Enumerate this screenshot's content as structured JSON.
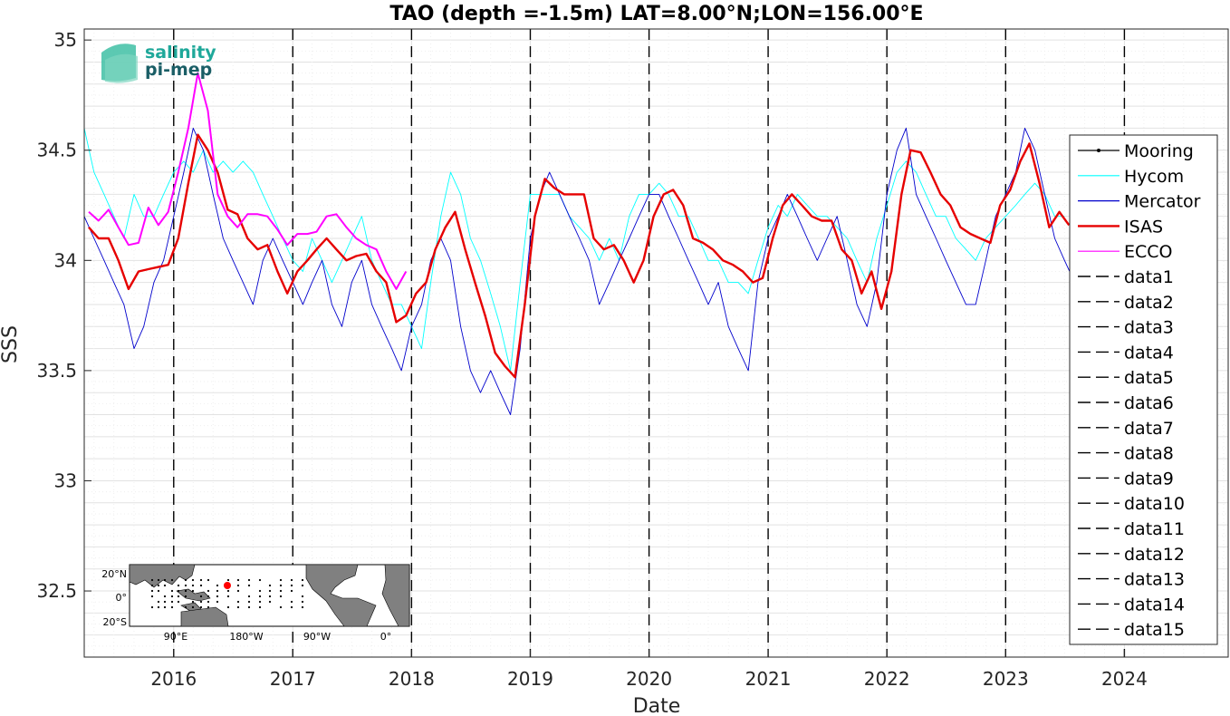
{
  "chart_data": {
    "type": "line",
    "title": "TAO (depth =-1.5m) LAT=8.00°N;LON=156.00°E",
    "xlabel": "Date",
    "ylabel": "SSS",
    "xlim": [
      "2015-04-01",
      "2024-11-15"
    ],
    "ylim": [
      32.2,
      35.05
    ],
    "x_ticks": [
      "2016",
      "2017",
      "2018",
      "2019",
      "2020",
      "2021",
      "2022",
      "2023",
      "2024"
    ],
    "y_ticks": [
      "32.5",
      "33",
      "33.5",
      "34",
      "34.5",
      "35"
    ],
    "grid": "on",
    "legend_position": "right",
    "year_lines": [
      "2016-01-01",
      "2017-01-01",
      "2018-01-01",
      "2019-01-01",
      "2020-01-01",
      "2021-01-01",
      "2022-01-01",
      "2023-01-01",
      "2024-01-01"
    ],
    "series": [
      {
        "name": "Mooring",
        "color": "#000000",
        "style": "solid-dot",
        "x": [],
        "y": []
      },
      {
        "name": "Hycom",
        "color": "#00ffff",
        "style": "solid",
        "x": [
          "2015-04-01",
          "2015-05-01",
          "2015-06-01",
          "2015-07-01",
          "2015-08-01",
          "2015-09-01",
          "2015-10-01",
          "2015-11-01",
          "2015-12-01",
          "2016-01-01",
          "2016-02-01",
          "2016-03-01",
          "2016-04-01",
          "2016-05-01",
          "2016-06-01",
          "2016-07-01",
          "2016-08-01",
          "2016-09-01",
          "2016-10-01",
          "2016-11-01",
          "2016-12-01",
          "2017-01-01",
          "2017-02-01",
          "2017-03-01",
          "2017-04-01",
          "2017-05-01",
          "2017-06-01",
          "2017-07-01",
          "2017-08-01",
          "2017-09-01",
          "2017-10-01",
          "2017-11-01",
          "2017-12-01",
          "2018-01-01",
          "2018-02-01",
          "2018-03-01",
          "2018-04-01",
          "2018-05-01",
          "2018-06-01",
          "2018-07-01",
          "2018-08-01",
          "2018-09-01",
          "2018-10-01",
          "2018-11-01",
          "2018-12-01",
          "2019-01-01",
          "2019-02-01",
          "2019-03-01",
          "2019-04-01",
          "2019-05-01",
          "2019-06-01",
          "2019-07-01",
          "2019-08-01",
          "2019-09-01",
          "2019-10-01",
          "2019-11-01",
          "2019-12-01",
          "2020-01-01",
          "2020-02-01",
          "2020-03-01",
          "2020-04-01",
          "2020-05-01",
          "2020-06-01",
          "2020-07-01",
          "2020-08-01",
          "2020-09-01",
          "2020-10-01",
          "2020-11-01",
          "2020-12-01",
          "2021-01-01",
          "2021-02-01",
          "2021-03-01",
          "2021-04-01",
          "2021-05-01",
          "2021-06-01",
          "2021-07-01",
          "2021-08-01",
          "2021-09-01",
          "2021-10-01",
          "2021-11-01",
          "2021-12-01",
          "2022-01-01",
          "2022-02-01",
          "2022-03-01",
          "2022-04-01",
          "2022-05-01",
          "2022-06-01",
          "2022-07-01",
          "2022-08-01",
          "2022-09-01",
          "2022-10-01",
          "2022-11-01",
          "2022-12-01",
          "2023-01-01",
          "2023-02-01",
          "2023-03-01",
          "2023-04-01",
          "2023-05-01",
          "2023-06-01",
          "2023-07-01"
        ],
        "y": [
          34.6,
          34.4,
          34.3,
          34.2,
          34.1,
          34.3,
          34.2,
          34.2,
          34.3,
          34.4,
          34.45,
          34.4,
          34.5,
          34.4,
          34.45,
          34.4,
          34.45,
          34.4,
          34.3,
          34.2,
          34.1,
          34.0,
          33.95,
          34.1,
          34.0,
          33.9,
          34.0,
          34.1,
          34.2,
          34.0,
          33.9,
          33.8,
          33.8,
          33.7,
          33.6,
          33.9,
          34.2,
          34.4,
          34.3,
          34.1,
          34.0,
          33.85,
          33.7,
          33.5,
          33.9,
          34.3,
          34.3,
          34.3,
          34.3,
          34.2,
          34.15,
          34.1,
          34.0,
          34.1,
          34.0,
          34.2,
          34.3,
          34.3,
          34.35,
          34.3,
          34.2,
          34.2,
          34.1,
          34.0,
          34.0,
          33.9,
          33.9,
          33.85,
          34.0,
          34.15,
          34.25,
          34.2,
          34.3,
          34.25,
          34.2,
          34.2,
          34.15,
          34.1,
          34.0,
          33.9,
          34.1,
          34.25,
          34.4,
          34.45,
          34.4,
          34.3,
          34.2,
          34.2,
          34.1,
          34.05,
          34.0,
          34.1,
          34.15,
          34.2,
          34.25,
          34.3,
          34.35,
          34.3,
          34.2,
          34.2
        ]
      },
      {
        "name": "Mercator",
        "color": "#0000cc",
        "style": "solid",
        "x": [
          "2015-04-01",
          "2015-05-01",
          "2015-06-01",
          "2015-07-01",
          "2015-08-01",
          "2015-09-01",
          "2015-10-01",
          "2015-11-01",
          "2015-12-01",
          "2016-01-01",
          "2016-02-01",
          "2016-03-01",
          "2016-04-01",
          "2016-05-01",
          "2016-06-01",
          "2016-07-01",
          "2016-08-01",
          "2016-09-01",
          "2016-10-01",
          "2016-11-01",
          "2016-12-01",
          "2017-01-01",
          "2017-02-01",
          "2017-03-01",
          "2017-04-01",
          "2017-05-01",
          "2017-06-01",
          "2017-07-01",
          "2017-08-01",
          "2017-09-01",
          "2017-10-01",
          "2017-11-01",
          "2017-12-01",
          "2018-01-01",
          "2018-02-01",
          "2018-03-01",
          "2018-04-01",
          "2018-05-01",
          "2018-06-01",
          "2018-07-01",
          "2018-08-01",
          "2018-09-01",
          "2018-10-01",
          "2018-11-01",
          "2018-12-01",
          "2019-01-01",
          "2019-02-01",
          "2019-03-01",
          "2019-04-01",
          "2019-05-01",
          "2019-06-01",
          "2019-07-01",
          "2019-08-01",
          "2019-09-01",
          "2019-10-01",
          "2019-11-01",
          "2019-12-01",
          "2020-01-01",
          "2020-02-01",
          "2020-03-01",
          "2020-04-01",
          "2020-05-01",
          "2020-06-01",
          "2020-07-01",
          "2020-08-01",
          "2020-09-01",
          "2020-10-01",
          "2020-11-01",
          "2020-12-01",
          "2021-01-01",
          "2021-02-01",
          "2021-03-01",
          "2021-04-01",
          "2021-05-01",
          "2021-06-01",
          "2021-07-01",
          "2021-08-01",
          "2021-09-01",
          "2021-10-01",
          "2021-11-01",
          "2021-12-01",
          "2022-01-01",
          "2022-02-01",
          "2022-03-01",
          "2022-04-01",
          "2022-05-01",
          "2022-06-01",
          "2022-07-01",
          "2022-08-01",
          "2022-09-01",
          "2022-10-01",
          "2022-11-01",
          "2022-12-01",
          "2023-01-01",
          "2023-02-01",
          "2023-03-01",
          "2023-04-01",
          "2023-05-01",
          "2023-06-01",
          "2023-07-01",
          "2023-08-01"
        ],
        "y": [
          34.2,
          34.1,
          34.0,
          33.9,
          33.8,
          33.6,
          33.7,
          33.9,
          34.0,
          34.2,
          34.4,
          34.6,
          34.5,
          34.3,
          34.1,
          34.0,
          33.9,
          33.8,
          34.0,
          34.1,
          34.0,
          33.9,
          33.8,
          33.9,
          34.0,
          33.8,
          33.7,
          33.9,
          34.0,
          33.8,
          33.7,
          33.6,
          33.5,
          33.7,
          33.8,
          34.0,
          34.1,
          34.0,
          33.7,
          33.5,
          33.4,
          33.5,
          33.4,
          33.3,
          33.6,
          34.1,
          34.3,
          34.4,
          34.3,
          34.2,
          34.1,
          34.0,
          33.8,
          33.9,
          34.0,
          34.1,
          34.2,
          34.3,
          34.3,
          34.2,
          34.1,
          34.0,
          33.9,
          33.8,
          33.9,
          33.7,
          33.6,
          33.5,
          33.9,
          34.1,
          34.2,
          34.3,
          34.2,
          34.1,
          34.0,
          34.1,
          34.2,
          34.0,
          33.8,
          33.7,
          33.9,
          34.3,
          34.5,
          34.6,
          34.3,
          34.2,
          34.1,
          34.0,
          33.9,
          33.8,
          33.8,
          34.0,
          34.2,
          34.3,
          34.4,
          34.6,
          34.5,
          34.3,
          34.1,
          34.0,
          33.9
        ]
      },
      {
        "name": "ISAS",
        "color": "#e60000",
        "style": "solid-thick",
        "x": [
          "2015-04-15",
          "2015-05-15",
          "2015-06-15",
          "2015-07-15",
          "2015-08-15",
          "2015-09-15",
          "2015-10-15",
          "2015-11-15",
          "2015-12-15",
          "2016-01-15",
          "2016-02-15",
          "2016-03-15",
          "2016-04-15",
          "2016-05-15",
          "2016-06-15",
          "2016-07-15",
          "2016-08-15",
          "2016-09-15",
          "2016-10-15",
          "2016-11-15",
          "2016-12-15",
          "2017-01-15",
          "2017-02-15",
          "2017-03-15",
          "2017-04-15",
          "2017-05-15",
          "2017-06-15",
          "2017-07-15",
          "2017-08-15",
          "2017-09-15",
          "2017-10-15",
          "2017-11-15",
          "2017-12-15",
          "2018-01-15",
          "2018-02-15",
          "2018-03-15",
          "2018-04-15",
          "2018-05-15",
          "2018-06-15",
          "2018-07-15",
          "2018-08-15",
          "2018-09-15",
          "2018-10-15",
          "2018-11-15",
          "2018-12-15",
          "2019-01-15",
          "2019-02-15",
          "2019-03-15",
          "2019-04-15",
          "2019-05-15",
          "2019-06-15",
          "2019-07-15",
          "2019-08-15",
          "2019-09-15",
          "2019-10-15",
          "2019-11-15",
          "2019-12-15",
          "2020-01-15",
          "2020-02-15",
          "2020-03-15",
          "2020-04-15",
          "2020-05-15",
          "2020-06-15",
          "2020-07-15",
          "2020-08-15",
          "2020-09-15",
          "2020-10-15",
          "2020-11-15",
          "2020-12-15",
          "2021-01-15",
          "2021-02-15",
          "2021-03-15",
          "2021-04-15",
          "2021-05-15",
          "2021-06-15",
          "2021-07-15",
          "2021-08-15",
          "2021-09-15",
          "2021-10-15",
          "2021-11-15",
          "2021-12-15",
          "2022-01-15",
          "2022-02-15",
          "2022-03-15",
          "2022-04-15",
          "2022-05-15",
          "2022-06-15",
          "2022-07-15",
          "2022-08-15",
          "2022-09-15",
          "2022-10-15",
          "2022-11-15",
          "2022-12-15",
          "2023-01-15",
          "2023-02-15",
          "2023-03-15",
          "2023-04-15",
          "2023-05-15",
          "2023-06-15",
          "2023-07-15"
        ],
        "y": [
          34.15,
          34.1,
          34.1,
          34.0,
          33.87,
          33.95,
          33.96,
          33.97,
          33.98,
          34.1,
          34.35,
          34.57,
          34.5,
          34.4,
          34.23,
          34.21,
          34.1,
          34.05,
          34.07,
          33.95,
          33.85,
          33.95,
          34.0,
          34.05,
          34.1,
          34.05,
          34.0,
          34.02,
          34.03,
          33.95,
          33.9,
          33.72,
          33.75,
          33.85,
          33.9,
          34.05,
          34.15,
          34.22,
          34.05,
          33.9,
          33.75,
          33.58,
          33.52,
          33.47,
          33.8,
          34.2,
          34.37,
          34.33,
          34.3,
          34.3,
          34.3,
          34.1,
          34.05,
          34.07,
          34.0,
          33.9,
          34.0,
          34.2,
          34.3,
          34.32,
          34.25,
          34.1,
          34.08,
          34.05,
          34.0,
          33.98,
          33.95,
          33.9,
          33.92,
          34.1,
          34.25,
          34.3,
          34.25,
          34.2,
          34.18,
          34.18,
          34.05,
          34.0,
          33.85,
          33.95,
          33.78,
          33.95,
          34.3,
          34.5,
          34.49,
          34.4,
          34.3,
          34.25,
          34.15,
          34.12,
          34.1,
          34.08,
          34.25,
          34.32,
          34.45,
          34.53,
          34.35,
          34.15,
          34.22,
          34.16
        ]
      },
      {
        "name": "ECCO",
        "color": "#ff00ff",
        "style": "solid",
        "x": [
          "2015-04-15",
          "2015-05-15",
          "2015-06-15",
          "2015-07-15",
          "2015-08-15",
          "2015-09-15",
          "2015-10-15",
          "2015-11-15",
          "2015-12-15",
          "2016-01-15",
          "2016-02-15",
          "2016-03-15",
          "2016-04-15",
          "2016-05-15",
          "2016-06-15",
          "2016-07-15",
          "2016-08-15",
          "2016-09-15",
          "2016-10-15",
          "2016-11-15",
          "2016-12-15",
          "2017-01-15",
          "2017-02-15",
          "2017-03-15",
          "2017-04-15",
          "2017-05-15",
          "2017-06-15",
          "2017-07-15",
          "2017-08-15",
          "2017-09-15",
          "2017-10-15",
          "2017-11-15",
          "2017-12-15"
        ],
        "y": [
          34.22,
          34.18,
          34.23,
          34.15,
          34.07,
          34.08,
          34.24,
          34.16,
          34.22,
          34.4,
          34.6,
          34.85,
          34.68,
          34.3,
          34.2,
          34.15,
          34.21,
          34.21,
          34.2,
          34.14,
          34.07,
          34.12,
          34.12,
          34.13,
          34.2,
          34.21,
          34.15,
          34.1,
          34.07,
          34.05,
          33.95,
          33.87,
          33.95
        ]
      },
      {
        "name": "data1",
        "color": "#000000",
        "style": "dashed",
        "x": [],
        "y": []
      },
      {
        "name": "data2",
        "color": "#000000",
        "style": "dashed",
        "x": [],
        "y": []
      },
      {
        "name": "data3",
        "color": "#000000",
        "style": "dashed",
        "x": [],
        "y": []
      },
      {
        "name": "data4",
        "color": "#000000",
        "style": "dashed",
        "x": [],
        "y": []
      },
      {
        "name": "data5",
        "color": "#000000",
        "style": "dashed",
        "x": [],
        "y": []
      },
      {
        "name": "data6",
        "color": "#000000",
        "style": "dashed",
        "x": [],
        "y": []
      },
      {
        "name": "data7",
        "color": "#000000",
        "style": "dashed",
        "x": [],
        "y": []
      },
      {
        "name": "data8",
        "color": "#000000",
        "style": "dashed",
        "x": [],
        "y": []
      },
      {
        "name": "data9",
        "color": "#000000",
        "style": "dashed",
        "x": [],
        "y": []
      },
      {
        "name": "data10",
        "color": "#000000",
        "style": "dashed",
        "x": [],
        "y": []
      },
      {
        "name": "data11",
        "color": "#000000",
        "style": "dashed",
        "x": [],
        "y": []
      },
      {
        "name": "data12",
        "color": "#000000",
        "style": "dashed",
        "x": [],
        "y": []
      },
      {
        "name": "data13",
        "color": "#000000",
        "style": "dashed",
        "x": [],
        "y": []
      },
      {
        "name": "data14",
        "color": "#000000",
        "style": "dashed",
        "x": [],
        "y": []
      },
      {
        "name": "data15",
        "color": "#000000",
        "style": "dashed",
        "x": [],
        "y": []
      }
    ]
  },
  "logo": {
    "line1": "salinity",
    "line2": "pi-mep"
  },
  "inset_map": {
    "y_ticks": [
      "20°N",
      "0°",
      "20°S"
    ],
    "x_ticks": [
      "90°E",
      "180°W",
      "90°W",
      "0°"
    ],
    "marker_color": "#ff0000"
  }
}
